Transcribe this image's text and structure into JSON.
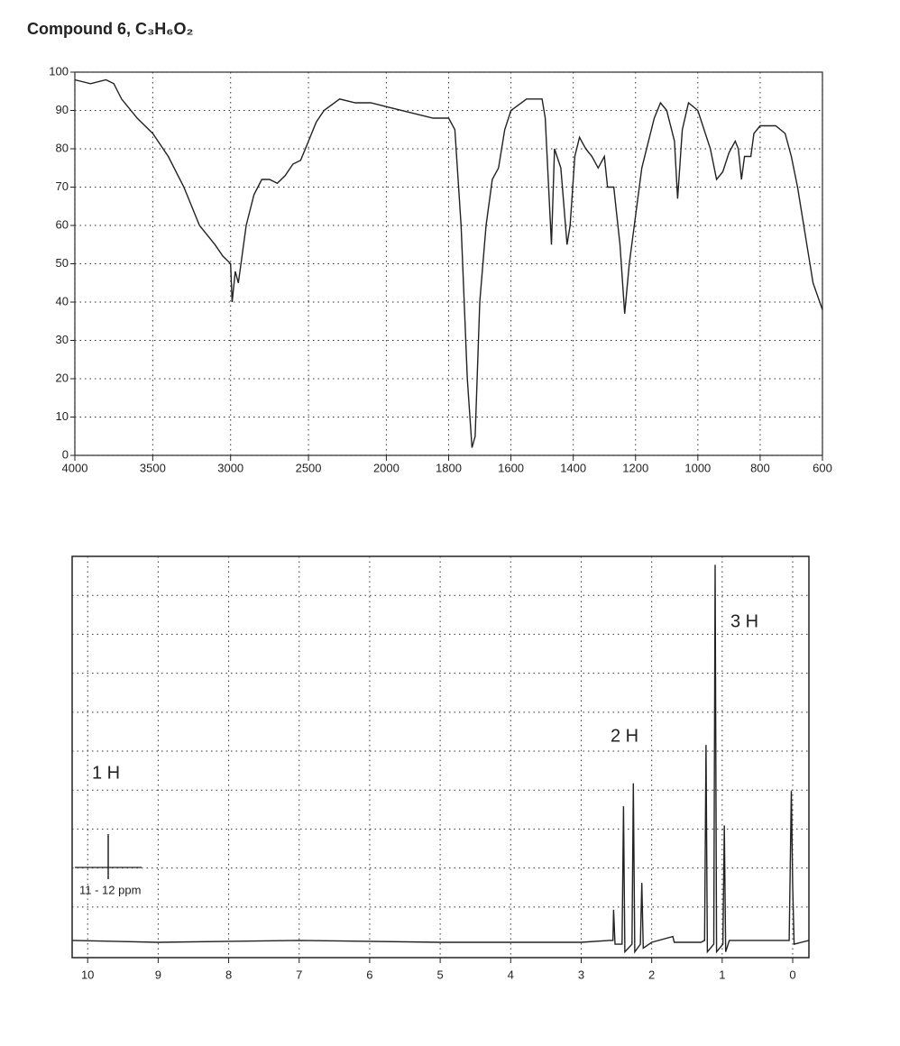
{
  "chart_data": [
    {
      "type": "line",
      "title": "Compound 6,  C₃H₆O₂",
      "color": "#222222",
      "grid": true,
      "x": [
        4000,
        3900,
        3800,
        3750,
        3700,
        3600,
        3500,
        3400,
        3300,
        3200,
        3100,
        3050,
        3000,
        2990,
        2970,
        2950,
        2900,
        2850,
        2800,
        2750,
        2700,
        2650,
        2600,
        2550,
        2500,
        2450,
        2400,
        2300,
        2200,
        2100,
        2000,
        1900,
        1850,
        1800,
        1780,
        1760,
        1740,
        1725,
        1715,
        1700,
        1680,
        1660,
        1640,
        1620,
        1600,
        1550,
        1500,
        1490,
        1470,
        1460,
        1440,
        1420,
        1410,
        1395,
        1380,
        1360,
        1340,
        1320,
        1300,
        1290,
        1270,
        1250,
        1235,
        1220,
        1180,
        1140,
        1120,
        1100,
        1075,
        1065,
        1050,
        1030,
        1000,
        960,
        940,
        920,
        900,
        880,
        870,
        860,
        850,
        830,
        820,
        800,
        750,
        720,
        700,
        680,
        650,
        630,
        600
      ],
      "values": [
        98,
        97,
        98,
        97,
        93,
        88,
        84,
        78,
        70,
        60,
        55,
        52,
        50,
        40,
        48,
        45,
        60,
        68,
        72,
        72,
        71,
        73,
        76,
        77,
        82,
        87,
        90,
        93,
        92,
        92,
        91,
        89,
        88,
        88,
        85,
        60,
        20,
        2,
        5,
        40,
        60,
        72,
        75,
        85,
        90,
        93,
        93,
        88,
        55,
        80,
        75,
        55,
        60,
        78,
        83,
        80,
        78,
        75,
        78,
        70,
        70,
        55,
        37,
        50,
        75,
        88,
        92,
        90,
        82,
        67,
        85,
        92,
        90,
        80,
        72,
        74,
        79,
        82,
        80,
        72,
        78,
        78,
        84,
        86,
        86,
        84,
        78,
        70,
        55,
        45,
        38
      ],
      "xlim": [
        4000,
        600
      ],
      "xticks": [
        4000,
        3500,
        3000,
        2500,
        2000,
        1800,
        1600,
        1400,
        1200,
        1000,
        800,
        600
      ],
      "ylim": [
        0,
        100
      ],
      "yticks": [
        0,
        10,
        20,
        30,
        40,
        50,
        60,
        70,
        80,
        90,
        100
      ]
    },
    {
      "type": "line",
      "color": "#222222",
      "grid": true,
      "x": [
        10.22,
        9,
        7,
        5,
        3,
        2.6,
        2.55,
        2.54,
        2.52,
        2.42,
        2.4,
        2.38,
        2.28,
        2.26,
        2.24,
        2.16,
        2.14,
        2.12,
        2.0,
        1.7,
        1.68,
        1.3,
        1.25,
        1.23,
        1.21,
        1.12,
        1.1,
        1.08,
        0.99,
        0.97,
        0.95,
        0.9,
        0.5,
        0.05,
        0.02,
        0.0,
        -0.02,
        -0.23
      ],
      "values": [
        0.1,
        0.05,
        0.1,
        0.05,
        0.05,
        0.1,
        0.1,
        0.9,
        0,
        0,
        3.6,
        -0.2,
        0,
        4.2,
        -0.2,
        0,
        1.6,
        -0.1,
        0.05,
        0.2,
        0.05,
        0.05,
        0.1,
        5.2,
        -0.2,
        0,
        9.9,
        -0.2,
        0,
        3.1,
        -0.2,
        0.1,
        0.1,
        0.1,
        4.0,
        1.5,
        0,
        0.1
      ],
      "xlim": [
        10.22,
        -0.23
      ],
      "xticks": [
        10,
        9,
        8,
        7,
        6,
        5,
        4,
        3,
        2,
        1,
        0
      ],
      "ylim": [
        -0.35,
        10.12
      ],
      "annotations": [
        "1 H",
        "2 H",
        "3 H",
        "11 - 12 ppm"
      ]
    }
  ]
}
